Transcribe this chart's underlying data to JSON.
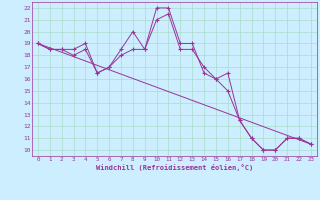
{
  "xlabel": "Windchill (Refroidissement éolien,°C)",
  "bg_color": "#cceeff",
  "line_color": "#993399",
  "grid_color": "#aaddcc",
  "xlim": [
    -0.5,
    23.5
  ],
  "ylim": [
    9.5,
    22.5
  ],
  "xticks": [
    0,
    1,
    2,
    3,
    4,
    5,
    6,
    7,
    8,
    9,
    10,
    11,
    12,
    13,
    14,
    15,
    16,
    17,
    18,
    19,
    20,
    21,
    22,
    23
  ],
  "yticks": [
    10,
    11,
    12,
    13,
    14,
    15,
    16,
    17,
    18,
    19,
    20,
    21,
    22
  ],
  "series": [
    {
      "x": [
        0,
        1,
        2,
        3,
        4,
        5,
        6,
        7,
        8,
        9,
        10,
        11,
        12,
        13,
        14,
        15,
        16,
        17,
        18,
        19,
        20,
        21,
        22,
        23
      ],
      "y": [
        19,
        18.5,
        18.5,
        18.5,
        19,
        16.5,
        17,
        18.5,
        20,
        18.5,
        22,
        22,
        19,
        19,
        16.5,
        16,
        16.5,
        12.5,
        11,
        10,
        10,
        11,
        11,
        10.5
      ]
    },
    {
      "x": [
        0,
        1,
        2,
        3,
        4,
        5,
        6,
        7,
        8,
        9,
        10,
        11,
        12,
        13,
        14,
        15,
        16,
        17,
        18,
        19,
        20,
        21,
        22,
        23
      ],
      "y": [
        19,
        18.5,
        18.5,
        18,
        18.5,
        16.5,
        17,
        18,
        18.5,
        18.5,
        21,
        21.5,
        18.5,
        18.5,
        17,
        16,
        15,
        12.5,
        11,
        10,
        10,
        11,
        11,
        10.5
      ]
    },
    {
      "x": [
        0,
        23
      ],
      "y": [
        19,
        10.5
      ]
    }
  ]
}
